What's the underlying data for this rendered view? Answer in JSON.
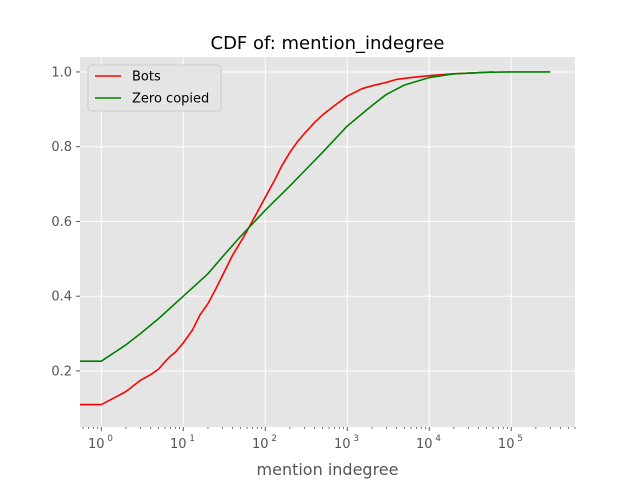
{
  "chart_data": {
    "type": "line",
    "title": "CDF of: mention_indegree",
    "xlabel": "mention indegree",
    "ylabel": "",
    "xscale": "log",
    "xlim": [
      0.55,
      600000
    ],
    "ylim": [
      0.05,
      1.04
    ],
    "grid": true,
    "legend_position": "top-left",
    "x_ticks": [
      {
        "value": 1,
        "base": "10",
        "exp": "0"
      },
      {
        "value": 10,
        "base": "10",
        "exp": "1"
      },
      {
        "value": 100,
        "base": "10",
        "exp": "2"
      },
      {
        "value": 1000,
        "base": "10",
        "exp": "3"
      },
      {
        "value": 10000,
        "base": "10",
        "exp": "4"
      },
      {
        "value": 100000,
        "base": "10",
        "exp": "5"
      }
    ],
    "y_ticks": [
      {
        "value": 0.2,
        "label": "0.2"
      },
      {
        "value": 0.4,
        "label": "0.4"
      },
      {
        "value": 0.6,
        "label": "0.6"
      },
      {
        "value": 0.8,
        "label": "0.8"
      },
      {
        "value": 1.0,
        "label": "1.0"
      }
    ],
    "series": [
      {
        "name": "Bots",
        "color": "#ff0000",
        "x": [
          0.55,
          1,
          1.5,
          2,
          3,
          4,
          5,
          6,
          7,
          8,
          10,
          13,
          16,
          20,
          25,
          30,
          40,
          50,
          60,
          80,
          100,
          130,
          160,
          200,
          250,
          300,
          400,
          500,
          700,
          1000,
          1500,
          2000,
          3000,
          4000,
          6000,
          10000,
          20000,
          40000,
          60000
        ],
        "y": [
          0.11,
          0.11,
          0.13,
          0.145,
          0.175,
          0.19,
          0.205,
          0.225,
          0.24,
          0.25,
          0.275,
          0.31,
          0.35,
          0.38,
          0.42,
          0.455,
          0.51,
          0.545,
          0.575,
          0.625,
          0.665,
          0.71,
          0.75,
          0.785,
          0.815,
          0.835,
          0.865,
          0.885,
          0.91,
          0.935,
          0.955,
          0.963,
          0.972,
          0.98,
          0.985,
          0.99,
          0.995,
          0.998,
          1.0
        ]
      },
      {
        "name": "Zero copied",
        "color": "#008000",
        "x": [
          0.55,
          1,
          2,
          3,
          5,
          10,
          20,
          30,
          50,
          100,
          200,
          300,
          500,
          1000,
          2000,
          3000,
          5000,
          10000,
          20000,
          50000,
          100000,
          300000
        ],
        "y": [
          0.226,
          0.226,
          0.27,
          0.3,
          0.34,
          0.4,
          0.46,
          0.505,
          0.56,
          0.63,
          0.695,
          0.735,
          0.785,
          0.855,
          0.91,
          0.94,
          0.965,
          0.985,
          0.995,
          0.999,
          1.0,
          1.0
        ]
      }
    ]
  }
}
